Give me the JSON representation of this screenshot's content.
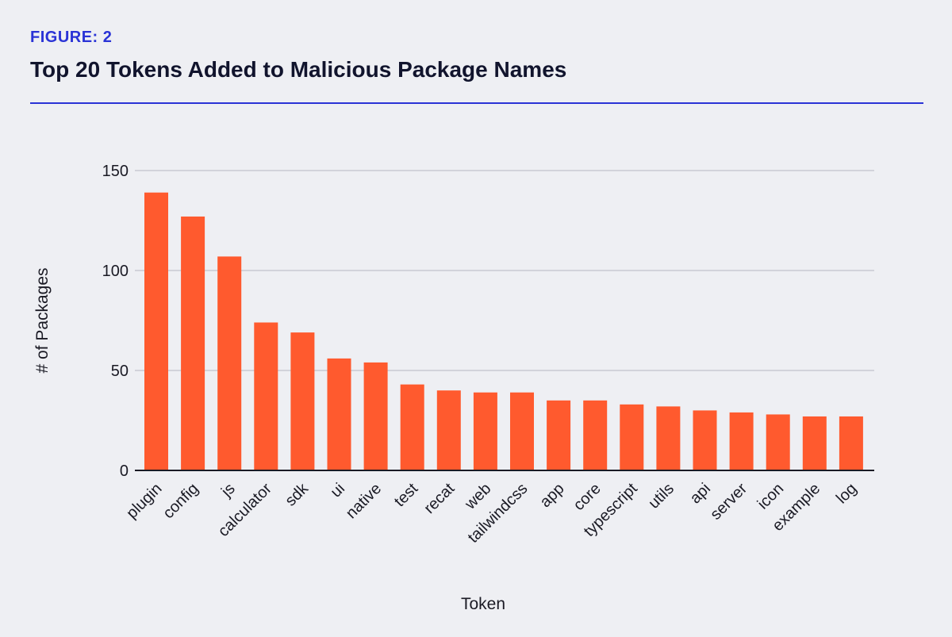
{
  "figure": {
    "label": "FIGURE: 2",
    "title": "Top 20 Tokens Added to Malicious Package Names"
  },
  "colors": {
    "bar": "#ff5a2e",
    "accent": "#2a33d6",
    "grid": "#c9cad2",
    "background": "#eeeff3"
  },
  "chart_data": {
    "type": "bar",
    "title": "Top 20 Tokens Added to Malicious Package Names",
    "xlabel": "Token",
    "ylabel": "# of Packages",
    "ylim": [
      0,
      150
    ],
    "yticks": [
      0,
      50,
      100,
      150
    ],
    "grid": true,
    "categories": [
      "plugin",
      "config",
      "js",
      "calculator",
      "sdk",
      "ui",
      "native",
      "test",
      "recat",
      "web",
      "tailwindcss",
      "app",
      "core",
      "typescript",
      "utils",
      "api",
      "server",
      "icon",
      "example",
      "log"
    ],
    "values": [
      139,
      127,
      107,
      74,
      69,
      56,
      54,
      43,
      40,
      39,
      39,
      35,
      35,
      33,
      32,
      30,
      29,
      28,
      27,
      27
    ]
  }
}
